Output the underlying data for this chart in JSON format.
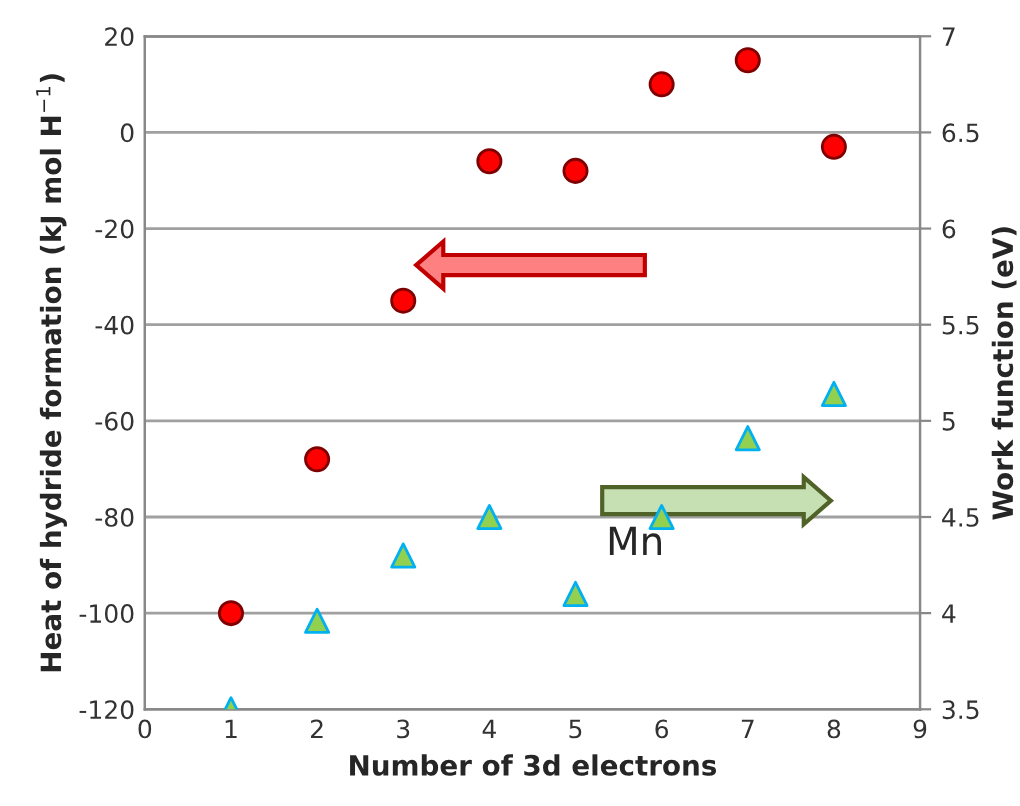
{
  "chart_data": {
    "type": "scatter",
    "xlabel": "Number of 3d electrons",
    "ylabel": "Heat of hydride formation (kJ mol H$^{−1}$)",
    "y2label": "Work function (eV)",
    "x": [
      1,
      2,
      3,
      4,
      5,
      6,
      7,
      8
    ],
    "series": [
      {
        "color": "#ff0000",
        "marker": "circle",
        "values": [
          -100,
          -68,
          -35,
          -6,
          -8,
          10,
          15,
          -3
        ]
      },
      {
        "color": "#92d050",
        "marker": "triangle",
        "axis": "y2",
        "values": [
          3.5,
          3.96,
          4.3,
          4.5,
          4.1,
          4.5,
          4.91,
          5.14
        ]
      }
    ],
    "xlim": [
      0,
      9
    ],
    "xticks": [
      0,
      1,
      2,
      3,
      4,
      5,
      6,
      7,
      8,
      9
    ],
    "ylim": [
      -120,
      20
    ],
    "yticks": [
      -120,
      -100,
      -80,
      -60,
      -40,
      -20,
      0,
      20
    ],
    "y2lim": [
      3.5,
      7
    ],
    "y2ticks": [
      3.5,
      4,
      4.5,
      5,
      5.5,
      6,
      6.5,
      7
    ],
    "grid": "y",
    "legend": false,
    "annotations": [
      "Mn"
    ]
  }
}
